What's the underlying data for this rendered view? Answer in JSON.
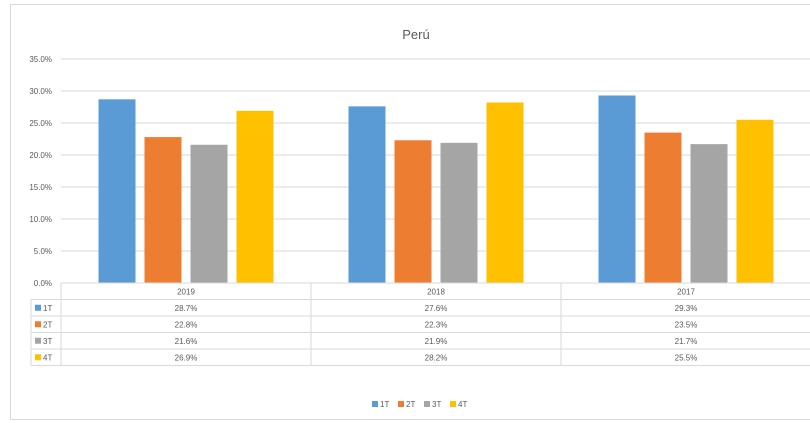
{
  "chart_data": {
    "type": "bar",
    "title": "Perú",
    "categories": [
      "2019",
      "2018",
      "2017"
    ],
    "series": [
      {
        "name": "1T",
        "color": "#5b9bd5",
        "values": [
          28.7,
          27.6,
          29.3
        ],
        "labels": [
          "28.7%",
          "27.6%",
          "29.3%"
        ]
      },
      {
        "name": "2T",
        "color": "#ed7d31",
        "values": [
          22.8,
          22.3,
          23.5
        ],
        "labels": [
          "22.8%",
          "22.3%",
          "23.5%"
        ]
      },
      {
        "name": "3T",
        "color": "#a5a5a5",
        "values": [
          21.6,
          21.9,
          21.7
        ],
        "labels": [
          "21.6%",
          "21.9%",
          "21.7%"
        ]
      },
      {
        "name": "4T",
        "color": "#ffc000",
        "values": [
          26.9,
          28.2,
          25.5
        ],
        "labels": [
          "26.9%",
          "28.2%",
          "25.5%"
        ]
      }
    ],
    "ylim": [
      0,
      35
    ],
    "yticks": [
      "0.0%",
      "5.0%",
      "10.0%",
      "15.0%",
      "20.0%",
      "25.0%",
      "30.0%",
      "35.0%"
    ],
    "grid": true,
    "data_table": true,
    "legend_position": "bottom"
  }
}
